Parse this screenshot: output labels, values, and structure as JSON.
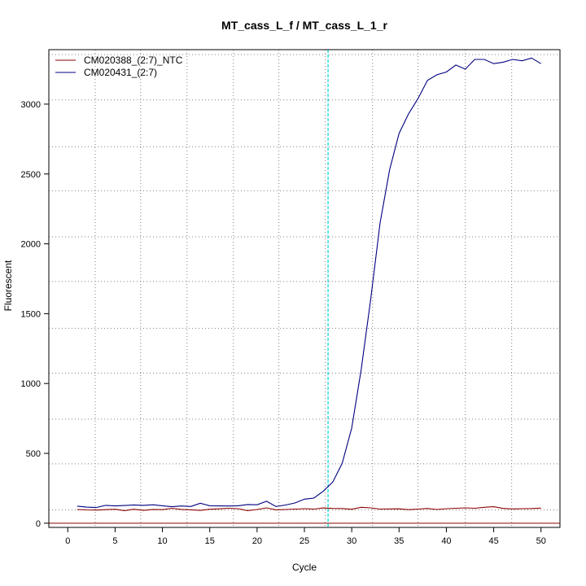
{
  "chart_data": {
    "type": "line",
    "title": "MT_cass_L_f / MT_cass_L_1_r",
    "xlabel": "Cycle",
    "ylabel": "Fluorescent",
    "xlim": [
      -2,
      52
    ],
    "ylim": [
      -30,
      3390
    ],
    "x_ticks": [
      0,
      5,
      10,
      15,
      20,
      25,
      30,
      35,
      40,
      45,
      50
    ],
    "y_ticks": [
      0,
      500,
      1000,
      1500,
      2000,
      2500,
      3000
    ],
    "grid": true,
    "legend_position": "top-left",
    "x_gridlines": [
      2.9,
      7.7,
      12.6,
      17.5,
      22.3,
      27.2,
      32.2,
      37.0,
      42.0,
      46.9
    ],
    "y_gridlines": [
      95,
      425,
      745,
      1075,
      1395,
      1730,
      2050,
      2380,
      2695,
      3030,
      3355
    ],
    "threshold": {
      "cycle": 27.5,
      "color": "#00d5d5"
    },
    "baseline": {
      "value": 0,
      "color": "#8b0000"
    },
    "series": [
      {
        "name": "CM020388_(2:7)_NTC",
        "color": "#8b0000",
        "x": [
          1,
          2,
          3,
          4,
          5,
          6,
          7,
          8,
          9,
          10,
          11,
          12,
          13,
          14,
          15,
          16,
          17,
          18,
          19,
          20,
          21,
          22,
          23,
          24,
          25,
          26,
          27,
          28,
          29,
          30,
          31,
          32,
          33,
          34,
          35,
          36,
          37,
          38,
          39,
          40,
          41,
          42,
          43,
          44,
          45,
          46,
          47,
          48,
          49,
          50
        ],
        "values": [
          98,
          95,
          94,
          97,
          100,
          90,
          100,
          92,
          99,
          97,
          107,
          99,
          96,
          92,
          100,
          103,
          107,
          104,
          90,
          98,
          110,
          96,
          98,
          101,
          104,
          101,
          109,
          106,
          105,
          100,
          114,
          110,
          101,
          102,
          103,
          97,
          101,
          106,
          98,
          104,
          107,
          110,
          107,
          114,
          118,
          106,
          102,
          104,
          105,
          108
        ]
      },
      {
        "name": "CM020431_(2:7)",
        "color": "#000080",
        "x": [
          1,
          2,
          3,
          4,
          5,
          6,
          7,
          8,
          9,
          10,
          11,
          12,
          13,
          14,
          15,
          16,
          17,
          18,
          19,
          20,
          21,
          22,
          23,
          24,
          25,
          26,
          27,
          28,
          29,
          30,
          31,
          32,
          33,
          34,
          35,
          36,
          37,
          38,
          39,
          40,
          41,
          42,
          43,
          44,
          45,
          46,
          47,
          48,
          49,
          50
        ],
        "values": [
          122,
          115,
          112,
          128,
          124,
          127,
          131,
          128,
          132,
          125,
          118,
          123,
          120,
          143,
          125,
          124,
          123,
          125,
          134,
          132,
          157,
          120,
          130,
          145,
          172,
          180,
          230,
          295,
          430,
          680,
          1100,
          1600,
          2150,
          2530,
          2790,
          2930,
          3040,
          3170,
          3210,
          3230,
          3280,
          3250,
          3320,
          3320,
          3290,
          3300,
          3320,
          3310,
          3330,
          3290
        ]
      }
    ]
  }
}
